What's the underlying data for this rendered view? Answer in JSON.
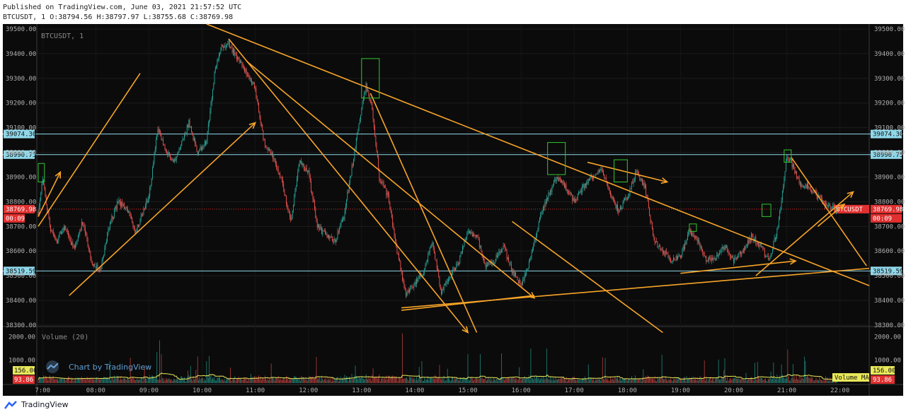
{
  "header": {
    "published": "Published on TradingView.com, June 03, 2021 21:57:52 UTC",
    "ohlc": "BTCUSDT, 1 O:38794.56 H:38797.97 L:38755.68 C:38769.98"
  },
  "chart_title": "BTCUSDT, 1",
  "volume_label": "Volume (20)",
  "watermark": "Chart by TradingView",
  "footer_brand": "TradingView",
  "colors": {
    "background": "#0b0b0b",
    "up": "#26a69a",
    "down": "#ef5350",
    "trend": "#f7a428",
    "box": "#32c832",
    "hline": "#8fd8ea",
    "current_price": "#e03030",
    "volume_ma": "#e8e85a",
    "axis_text": "#b0b0b0"
  },
  "chart_data": {
    "type": "candlestick",
    "symbol": "BTCUSDT",
    "interval": "1",
    "price_axis": {
      "range": [
        38300,
        39520
      ],
      "ticks": [
        "39500.00",
        "39400.00",
        "39300.00",
        "39200.00",
        "39100.00",
        "39000.00",
        "38900.00",
        "38800.00",
        "38700.00",
        "38600.00",
        "38500.00",
        "38400.00",
        "38300.00"
      ]
    },
    "volume_axis": {
      "range": [
        0,
        2200
      ],
      "ticks": [
        "2000.00",
        "1000.00"
      ]
    },
    "time_axis": {
      "range": [
        "06:55",
        "22:33"
      ],
      "ticks": [
        "7:00",
        "08:00",
        "09:00",
        "10:00",
        "11:00",
        "12:00",
        "13:00",
        "14:00",
        "15:00",
        "16:00",
        "17:00",
        "18:00",
        "19:00",
        "20:00",
        "21:00",
        "22:00"
      ]
    },
    "horizontal_levels": [
      {
        "price": 39074.3,
        "label": "39074.30"
      },
      {
        "price": 38990.75,
        "label": "38990.75"
      },
      {
        "price": 38519.59,
        "label": "38519.59"
      }
    ],
    "current_price": {
      "price": 38769.98,
      "label": "38769.98",
      "countdown": "00:09",
      "symbol": "BTCUSDT"
    },
    "volume_current": {
      "value": 93.86,
      "label": "93.86"
    },
    "volume_ma_current": {
      "value": 156.0,
      "label": "156.00",
      "name": "Volume MA"
    },
    "price_path": [
      [
        "06:55",
        38760
      ],
      [
        "07:00",
        38900
      ],
      [
        "07:08",
        38700
      ],
      [
        "07:15",
        38640
      ],
      [
        "07:25",
        38700
      ],
      [
        "07:35",
        38610
      ],
      [
        "07:45",
        38720
      ],
      [
        "07:55",
        38560
      ],
      [
        "08:05",
        38520
      ],
      [
        "08:15",
        38700
      ],
      [
        "08:25",
        38800
      ],
      [
        "08:35",
        38770
      ],
      [
        "08:45",
        38680
      ],
      [
        "09:00",
        38820
      ],
      [
        "09:10",
        39100
      ],
      [
        "09:20",
        39000
      ],
      [
        "09:30",
        38960
      ],
      [
        "09:45",
        39120
      ],
      [
        "09:55",
        39000
      ],
      [
        "10:05",
        39050
      ],
      [
        "10:15",
        39350
      ],
      [
        "10:22",
        39430
      ],
      [
        "10:30",
        39440
      ],
      [
        "10:40",
        39380
      ],
      [
        "10:50",
        39320
      ],
      [
        "11:00",
        39260
      ],
      [
        "11:10",
        39040
      ],
      [
        "11:20",
        38980
      ],
      [
        "11:30",
        38880
      ],
      [
        "11:40",
        38720
      ],
      [
        "11:50",
        38960
      ],
      [
        "12:00",
        38920
      ],
      [
        "12:10",
        38700
      ],
      [
        "12:20",
        38660
      ],
      [
        "12:30",
        38640
      ],
      [
        "12:40",
        38740
      ],
      [
        "12:50",
        38960
      ],
      [
        "13:00",
        39180
      ],
      [
        "13:05",
        39270
      ],
      [
        "13:12",
        39180
      ],
      [
        "13:20",
        38900
      ],
      [
        "13:30",
        38820
      ],
      [
        "13:40",
        38600
      ],
      [
        "13:50",
        38420
      ],
      [
        "14:00",
        38470
      ],
      [
        "14:10",
        38520
      ],
      [
        "14:20",
        38640
      ],
      [
        "14:30",
        38430
      ],
      [
        "14:40",
        38500
      ],
      [
        "14:50",
        38560
      ],
      [
        "15:00",
        38680
      ],
      [
        "15:10",
        38660
      ],
      [
        "15:20",
        38540
      ],
      [
        "15:30",
        38560
      ],
      [
        "15:40",
        38620
      ],
      [
        "15:50",
        38520
      ],
      [
        "16:00",
        38460
      ],
      [
        "16:10",
        38560
      ],
      [
        "16:20",
        38720
      ],
      [
        "16:30",
        38820
      ],
      [
        "16:40",
        38900
      ],
      [
        "16:50",
        38860
      ],
      [
        "17:00",
        38800
      ],
      [
        "17:10",
        38860
      ],
      [
        "17:20",
        38900
      ],
      [
        "17:30",
        38940
      ],
      [
        "17:40",
        38840
      ],
      [
        "17:50",
        38760
      ],
      [
        "18:00",
        38820
      ],
      [
        "18:10",
        38920
      ],
      [
        "18:20",
        38860
      ],
      [
        "18:30",
        38640
      ],
      [
        "18:40",
        38600
      ],
      [
        "18:50",
        38560
      ],
      [
        "19:00",
        38580
      ],
      [
        "19:10",
        38680
      ],
      [
        "19:20",
        38640
      ],
      [
        "19:30",
        38560
      ],
      [
        "19:40",
        38580
      ],
      [
        "19:50",
        38620
      ],
      [
        "20:00",
        38560
      ],
      [
        "20:10",
        38600
      ],
      [
        "20:20",
        38660
      ],
      [
        "20:30",
        38620
      ],
      [
        "20:40",
        38560
      ],
      [
        "20:50",
        38700
      ],
      [
        "21:00",
        38980
      ],
      [
        "21:05",
        38960
      ],
      [
        "21:15",
        38870
      ],
      [
        "21:25",
        38860
      ],
      [
        "21:35",
        38820
      ],
      [
        "21:45",
        38780
      ],
      [
        "21:55",
        38770
      ],
      [
        "21:57",
        38770
      ]
    ],
    "drawings": {
      "trendlines": [
        [
          [
            "06:55",
            38700
          ],
          [
            "08:50",
            39320
          ]
        ],
        [
          [
            "06:55",
            38740
          ],
          [
            "07:20",
            38920
          ]
        ],
        [
          [
            "07:30",
            38420
          ],
          [
            "11:00",
            39120
          ]
        ],
        [
          [
            "10:05",
            39520
          ],
          [
            "22:33",
            38460
          ]
        ],
        [
          [
            "10:30",
            39460
          ],
          [
            "15:00",
            38270
          ]
        ],
        [
          [
            "10:50",
            39370
          ],
          [
            "16:15",
            38410
          ]
        ],
        [
          [
            "13:10",
            39240
          ],
          [
            "15:10",
            38270
          ]
        ],
        [
          [
            "15:50",
            38720
          ],
          [
            "18:40",
            38270
          ]
        ],
        [
          [
            "13:45",
            38360
          ],
          [
            "16:15",
            38420
          ]
        ],
        [
          [
            "13:45",
            38370
          ],
          [
            "22:33",
            38530
          ]
        ],
        [
          [
            "17:15",
            38960
          ],
          [
            "18:45",
            38880
          ]
        ],
        [
          [
            "19:00",
            38510
          ],
          [
            "21:10",
            38560
          ]
        ],
        [
          [
            "20:25",
            38500
          ],
          [
            "22:15",
            38840
          ]
        ],
        [
          [
            "21:05",
            38980
          ],
          [
            "22:30",
            38540
          ]
        ],
        [
          [
            "21:35",
            38700
          ],
          [
            "22:05",
            38790
          ]
        ]
      ],
      "arrow_ends": [
        1,
        2,
        4,
        5,
        10,
        11,
        12,
        14
      ],
      "boxes": [
        {
          "t": [
            "06:55",
            "07:02"
          ],
          "p": [
            38955,
            38880
          ]
        },
        {
          "t": [
            "13:00",
            "13:20"
          ],
          "p": [
            39380,
            39220
          ]
        },
        {
          "t": [
            "16:30",
            "16:50"
          ],
          "p": [
            39040,
            38910
          ]
        },
        {
          "t": [
            "17:45",
            "18:00"
          ],
          "p": [
            38970,
            38880
          ]
        },
        {
          "t": [
            "19:10",
            "19:18"
          ],
          "p": [
            38710,
            38680
          ]
        },
        {
          "t": [
            "20:32",
            "20:42"
          ],
          "p": [
            38790,
            38740
          ]
        },
        {
          "t": [
            "20:57",
            "21:05"
          ],
          "p": [
            39010,
            38960
          ]
        }
      ]
    }
  }
}
